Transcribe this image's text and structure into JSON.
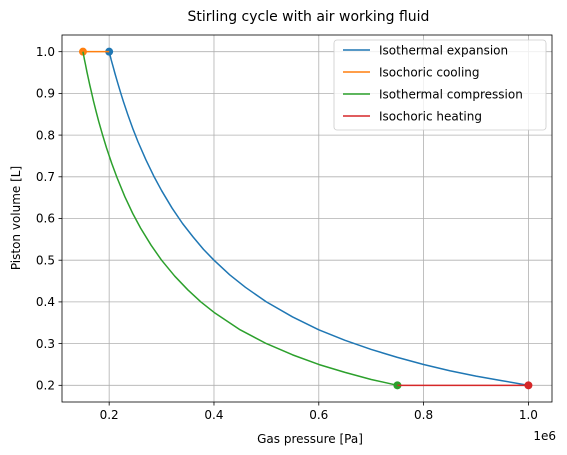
{
  "chart_data": {
    "type": "line",
    "title": "Stirling cycle with air working fluid",
    "xlabel": "Gas pressure [Pa]",
    "ylabel": "Piston volume [L]",
    "x_offset_text": "1e6",
    "x_scale": 1000000,
    "xlim": [
      110000,
      1045000
    ],
    "ylim": [
      0.16,
      1.04
    ],
    "x_ticks": [
      200000,
      400000,
      600000,
      800000,
      1000000
    ],
    "x_tick_labels": [
      "0.2",
      "0.4",
      "0.6",
      "0.8",
      "1.0"
    ],
    "y_ticks": [
      0.2,
      0.3,
      0.4,
      0.5,
      0.6,
      0.7,
      0.8,
      0.9,
      1.0
    ],
    "y_tick_labels": [
      "0.2",
      "0.3",
      "0.4",
      "0.5",
      "0.6",
      "0.7",
      "0.8",
      "0.9",
      "1.0"
    ],
    "grid": true,
    "legend_position": "top-right",
    "series": [
      {
        "name": "Isothermal expansion",
        "color": "#1f77b4",
        "x": [
          200000,
          202000,
          204000,
          206000,
          208000,
          211000,
          214000,
          217000,
          222000,
          227000,
          235000,
          245000,
          255000,
          270000,
          285000,
          300000,
          320000,
          340000,
          360000,
          380000,
          400000,
          430000,
          460000,
          500000,
          550000,
          600000,
          650000,
          700000,
          750000,
          800000,
          850000,
          900000,
          950000,
          1000000
        ],
        "y": [
          1.0,
          0.99,
          0.98,
          0.971,
          0.962,
          0.948,
          0.935,
          0.922,
          0.901,
          0.881,
          0.851,
          0.816,
          0.784,
          0.741,
          0.702,
          0.667,
          0.625,
          0.588,
          0.556,
          0.526,
          0.5,
          0.465,
          0.435,
          0.4,
          0.364,
          0.333,
          0.308,
          0.286,
          0.267,
          0.25,
          0.235,
          0.222,
          0.211,
          0.2
        ],
        "markers": [
          {
            "x": 200000,
            "y": 1.0
          }
        ]
      },
      {
        "name": "Isochoric cooling",
        "color": "#ff7f0e",
        "x": [
          200000,
          150000
        ],
        "y": [
          1.0,
          1.0
        ],
        "markers": [
          {
            "x": 150000,
            "y": 1.0
          }
        ]
      },
      {
        "name": "Isothermal compression",
        "color": "#2ca02c",
        "x": [
          150000,
          151500,
          153000,
          155000,
          157500,
          160000,
          163000,
          166000,
          170000,
          175000,
          180000,
          187500,
          195000,
          205000,
          215000,
          230000,
          245000,
          260000,
          280000,
          300000,
          325000,
          350000,
          375000,
          400000,
          450000,
          500000,
          550000,
          600000,
          650000,
          700000,
          750000
        ],
        "y": [
          1.0,
          0.99,
          0.98,
          0.968,
          0.952,
          0.9375,
          0.92,
          0.904,
          0.882,
          0.857,
          0.833,
          0.8,
          0.769,
          0.732,
          0.698,
          0.652,
          0.612,
          0.577,
          0.536,
          0.5,
          0.462,
          0.429,
          0.4,
          0.375,
          0.333,
          0.3,
          0.273,
          0.25,
          0.231,
          0.214,
          0.2
        ],
        "markers": [
          {
            "x": 750000,
            "y": 0.2
          }
        ]
      },
      {
        "name": "Isochoric heating",
        "color": "#d62728",
        "x": [
          750000,
          1000000
        ],
        "y": [
          0.2,
          0.2
        ],
        "markers": [
          {
            "x": 1000000,
            "y": 0.2
          }
        ]
      }
    ]
  }
}
